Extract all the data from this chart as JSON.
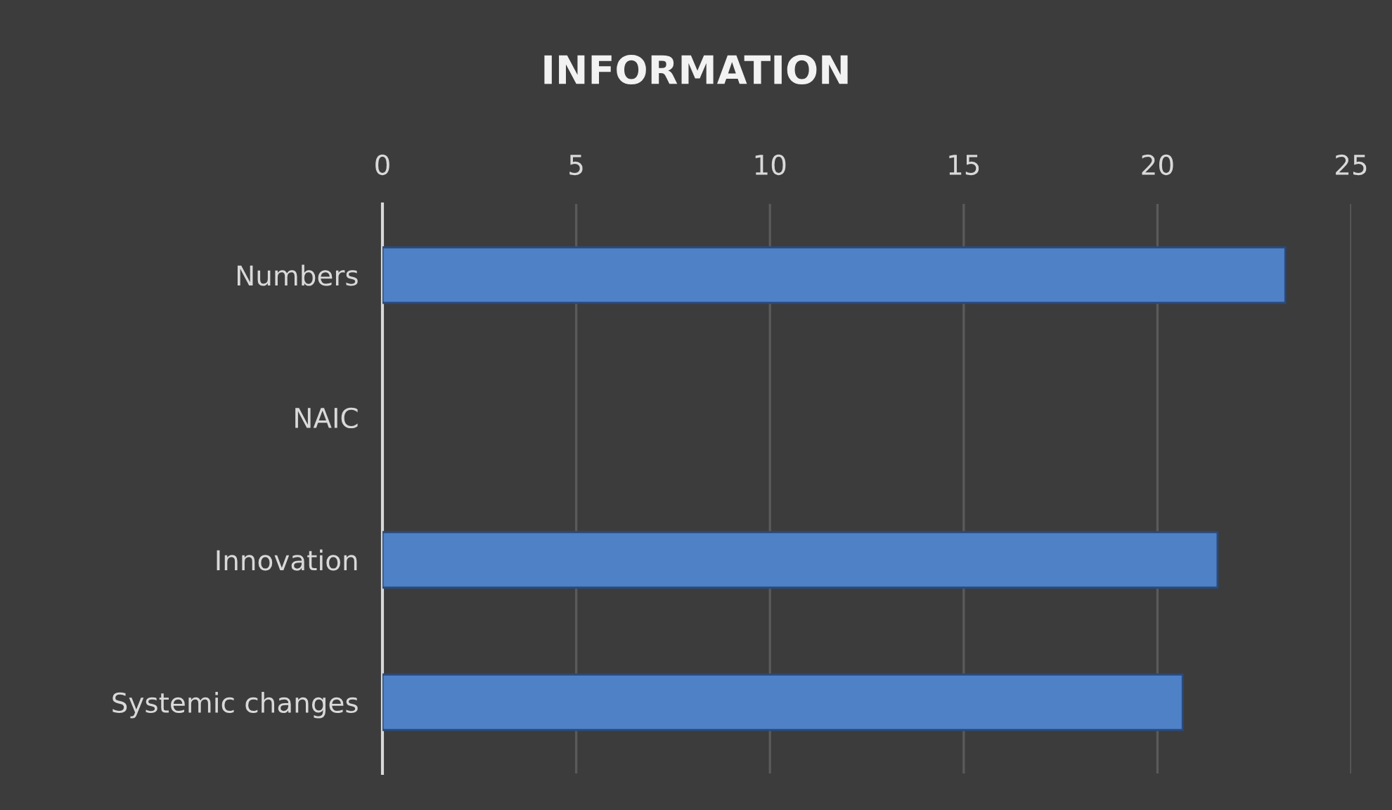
{
  "chart_data": {
    "type": "bar",
    "orientation": "horizontal",
    "title": "INFORMATION",
    "categories": [
      "Numbers",
      "NAIC",
      "Innovation",
      "Systemic changes"
    ],
    "values": [
      23.3,
      null,
      21.55,
      20.65
    ],
    "color": "#4f81c7",
    "xlim": [
      0,
      25
    ],
    "xticks": [
      0,
      5,
      10,
      15,
      20,
      25
    ],
    "grid": "x"
  }
}
